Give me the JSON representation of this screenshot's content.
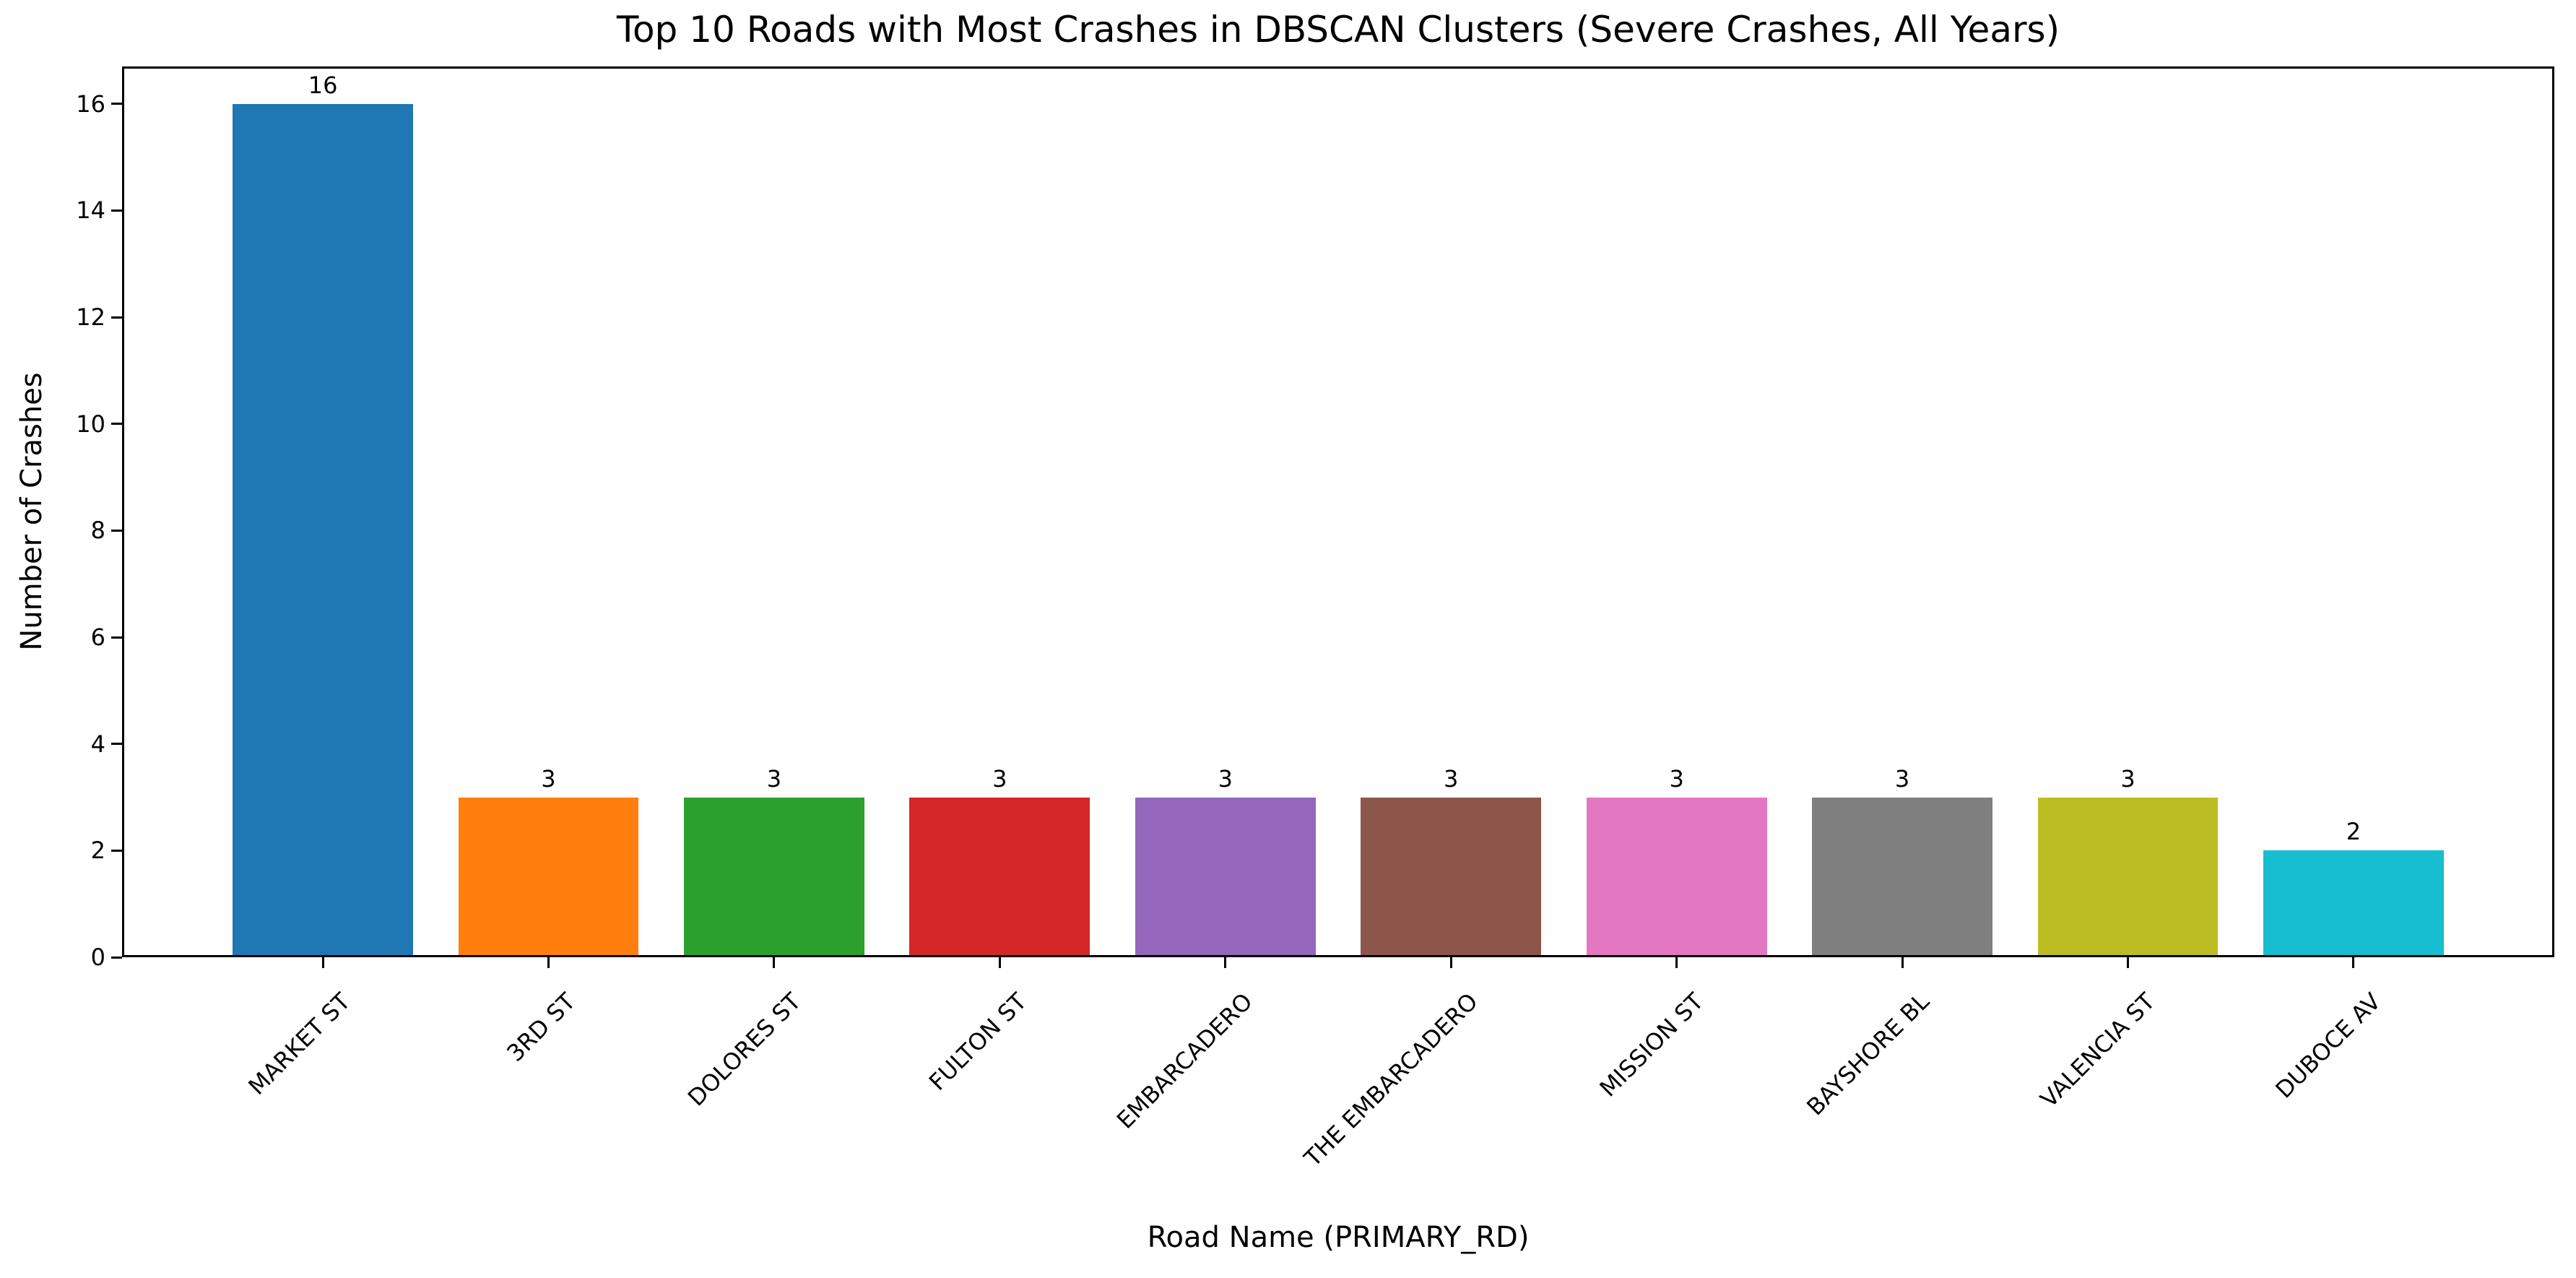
{
  "chart_data": {
    "type": "bar",
    "title": "Top 10 Roads with Most Crashes in DBSCAN Clusters (Severe Crashes, All Years)",
    "xlabel": "Road Name (PRIMARY_RD)",
    "ylabel": "Number of Crashes",
    "categories": [
      "MARKET ST",
      "3RD ST",
      "DOLORES ST",
      "FULTON ST",
      "EMBARCADERO",
      "THE EMBARCADERO",
      "MISSION ST",
      "BAYSHORE BL",
      "VALENCIA ST",
      "DUBOCE AV"
    ],
    "values": [
      16,
      3,
      3,
      3,
      3,
      3,
      3,
      3,
      3,
      2
    ],
    "bar_labels": [
      "16",
      "3",
      "3",
      "3",
      "3",
      "3",
      "3",
      "3",
      "3",
      "2"
    ],
    "colors": [
      "#1f77b4",
      "#ff7f0e",
      "#2ca02c",
      "#d62728",
      "#9467bd",
      "#8c564b",
      "#e377c2",
      "#7f7f7f",
      "#bcbd22",
      "#17becf"
    ],
    "yticks": [
      0,
      2,
      4,
      6,
      8,
      10,
      12,
      14,
      16
    ],
    "ylim": [
      0,
      16.7
    ],
    "xlim": [
      -0.89,
      9.89
    ],
    "bar_width": 0.8,
    "grid": false,
    "legend_position": "none",
    "background_color": "#ffffff",
    "text_color": "#000000",
    "axis_color": "#000000"
  }
}
